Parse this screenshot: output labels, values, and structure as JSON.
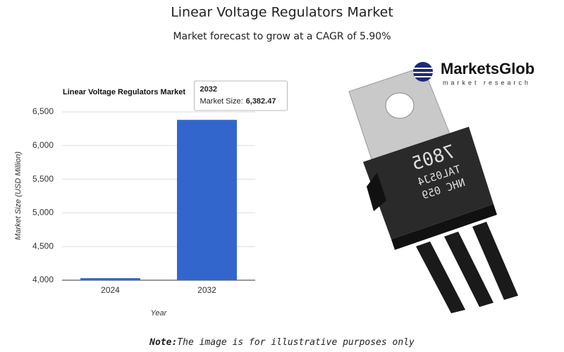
{
  "header": {
    "title": "Linear Voltage Regulators Market",
    "subtitle": "Market forecast to grow at a CAGR of 5.90%"
  },
  "chart_data": {
    "type": "bar",
    "title": "Linear Voltage Regulators Market",
    "categories": [
      "2024",
      "2032"
    ],
    "values": [
      4030,
      6382.47
    ],
    "value_labels": [
      null,
      "6,382.47"
    ],
    "color": "#3366cc",
    "ylim": [
      4000,
      6500
    ],
    "yticks": [
      {
        "value": 4000,
        "label": "4,000"
      },
      {
        "value": 4500,
        "label": "4,500"
      },
      {
        "value": 5000,
        "label": "5,000"
      },
      {
        "value": 5500,
        "label": "5,500"
      },
      {
        "value": 6000,
        "label": "6,000"
      },
      {
        "value": 6500,
        "label": "6,500"
      }
    ],
    "grid": true,
    "x_label": "Year",
    "y_label": "Market Size (USD Million)",
    "tooltip": {
      "title": "2032",
      "label": "Market Size:"
    }
  },
  "image": {
    "logo": "MarketsGlob",
    "tagline": "market research",
    "markings": [
      "7805",
      "TAL05J4",
      "NHC 059"
    ]
  },
  "note": {
    "bold": "Note:",
    "text": "The image is for illustrative purposes only"
  }
}
